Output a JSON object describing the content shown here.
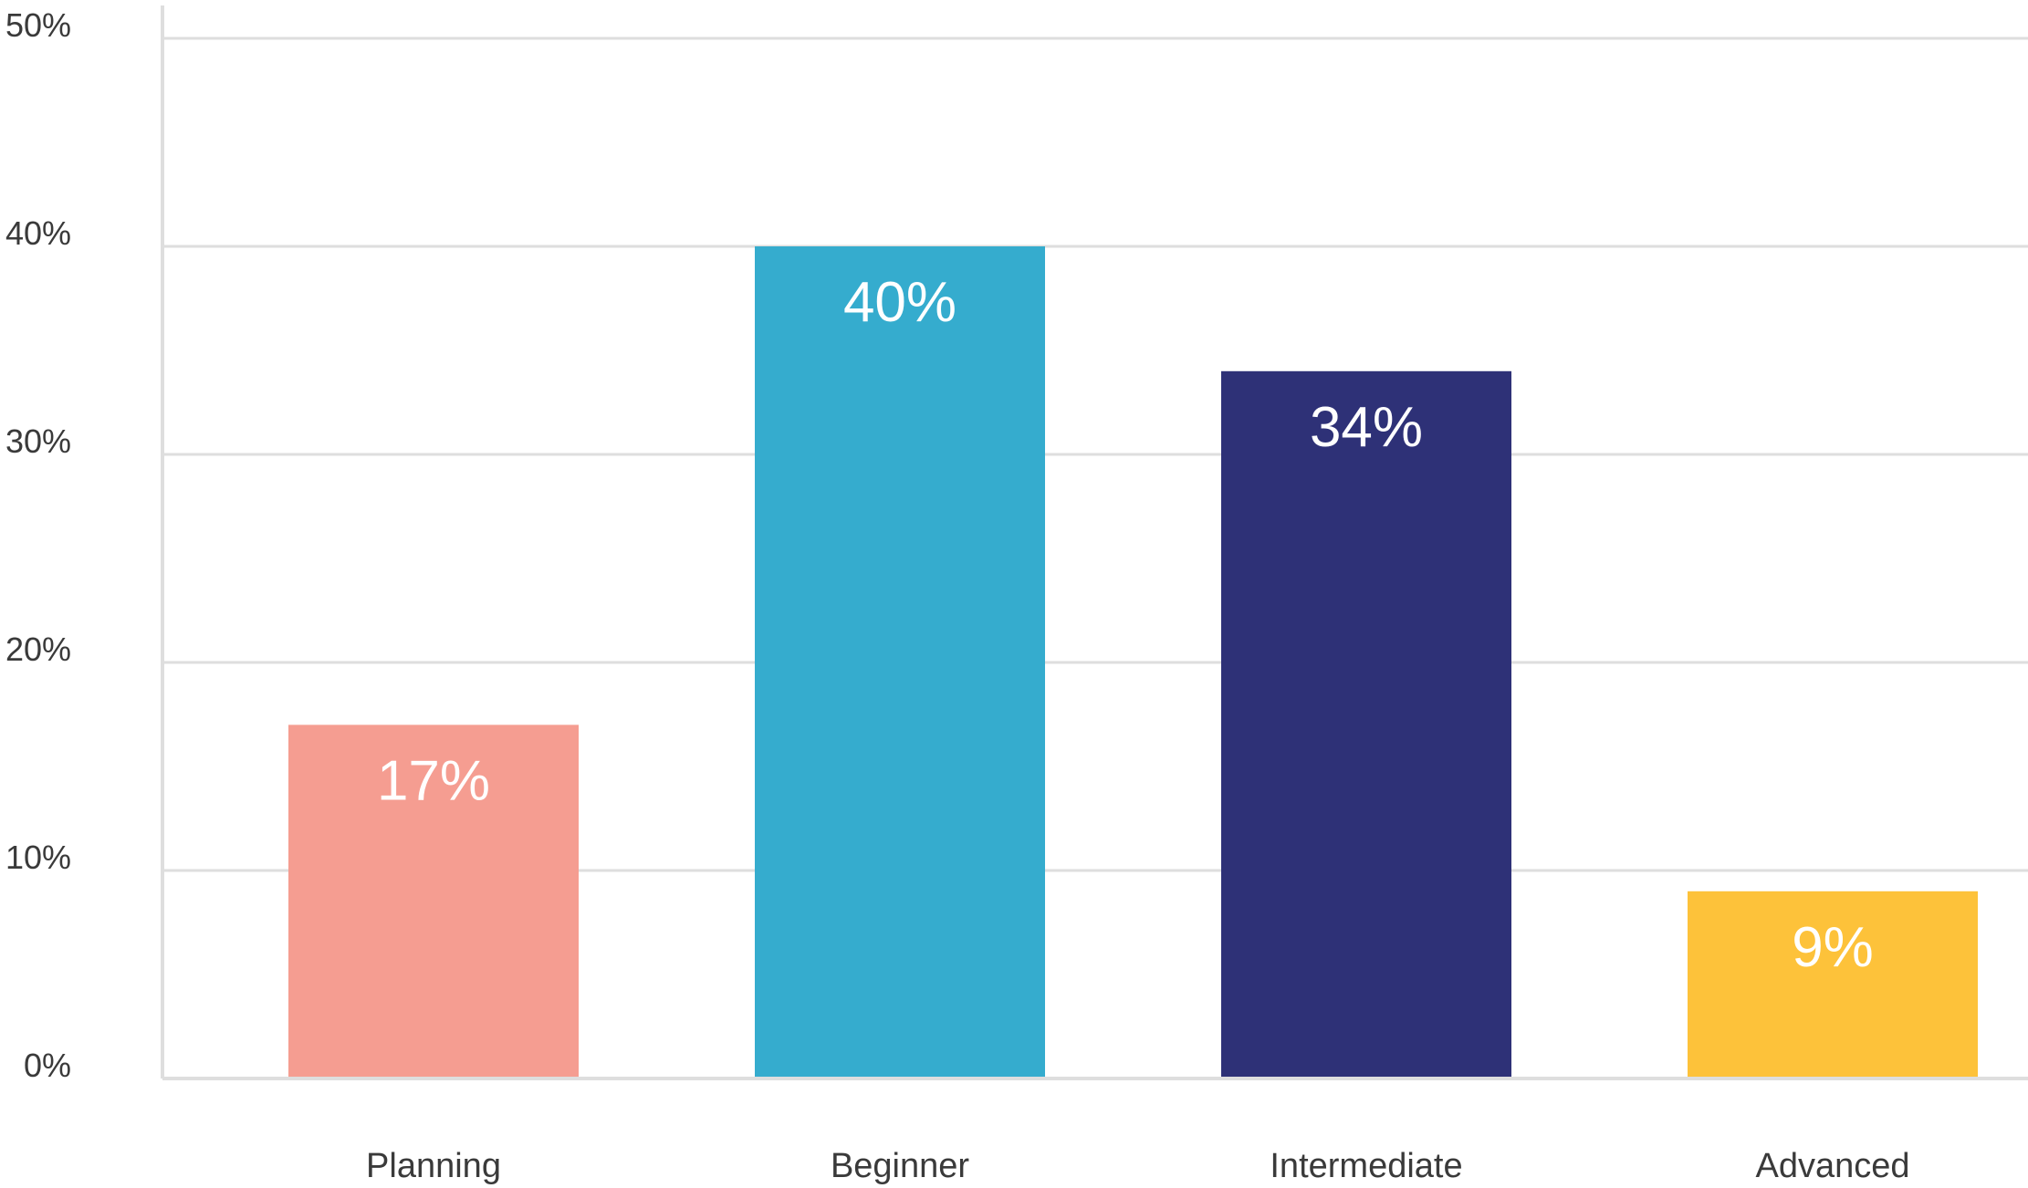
{
  "chart_data": {
    "type": "bar",
    "categories": [
      "Planning",
      "Beginner",
      "Intermediate",
      "Advanced"
    ],
    "values": [
      17,
      40,
      34,
      9
    ],
    "data_labels": [
      "17%",
      "40%",
      "34%",
      "9%"
    ],
    "colors": [
      "#f59d91",
      "#35acce",
      "#2e3177",
      "#fdc23a"
    ],
    "y_ticks": [
      "0%",
      "10%",
      "20%",
      "30%",
      "40%",
      "50%"
    ],
    "y_tick_values": [
      0,
      10,
      20,
      30,
      40,
      50
    ],
    "ylim": [
      0,
      50
    ],
    "grid": true,
    "title": "",
    "xlabel": "",
    "ylabel": ""
  }
}
